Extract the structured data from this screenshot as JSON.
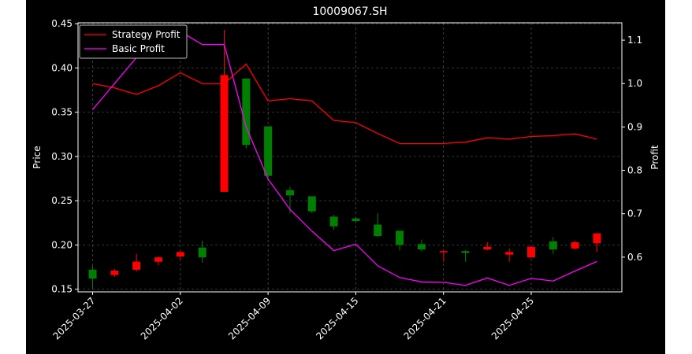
{
  "chart_data": {
    "type": "candlestick",
    "title": "10009067.SH",
    "ylabel": "Price",
    "y2label": "Profit",
    "ylim": [
      0.147,
      0.451
    ],
    "y2lim": [
      0.52,
      1.14
    ],
    "yticks": [
      0.15,
      0.2,
      0.25,
      0.3,
      0.35,
      0.4,
      0.45
    ],
    "ytick_labels": [
      "0.15",
      "0.20",
      "0.25",
      "0.30",
      "0.35",
      "0.40",
      "0.45"
    ],
    "y2ticks": [
      0.6,
      0.7,
      0.8,
      0.9,
      1.0,
      1.1
    ],
    "y2tick_labels": [
      "0.6",
      "0.7",
      "0.8",
      "0.9",
      "1.0",
      "1.1"
    ],
    "xlim": [
      -1,
      34
    ],
    "xticks": [
      0,
      6,
      12,
      18,
      24,
      30
    ],
    "xtick_labels": [
      "2025-03-27",
      "2025-04-02",
      "2025-04-09",
      "2025-04-15",
      "2025-04-21",
      "2025-04-25"
    ],
    "grid": true,
    "legend_position": "top-left",
    "colors": {
      "up": "#ff0000",
      "down": "#008000",
      "strategy": "#ff0000",
      "basic": "#ff00ff",
      "background": "#000000",
      "foreground": "#ffffff"
    },
    "candles": [
      {
        "x": 0,
        "open": 0.172,
        "high": 0.176,
        "low": 0.151,
        "close": 0.162
      },
      {
        "x": 1.5,
        "open": 0.166,
        "high": 0.173,
        "low": 0.164,
        "close": 0.171
      },
      {
        "x": 3,
        "open": 0.172,
        "high": 0.19,
        "low": 0.17,
        "close": 0.181
      },
      {
        "x": 4.5,
        "open": 0.181,
        "high": 0.187,
        "low": 0.177,
        "close": 0.186
      },
      {
        "x": 6,
        "open": 0.187,
        "high": 0.193,
        "low": 0.183,
        "close": 0.192
      },
      {
        "x": 7.5,
        "open": 0.197,
        "high": 0.205,
        "low": 0.18,
        "close": 0.186
      },
      {
        "x": 9,
        "open": 0.26,
        "high": 0.443,
        "low": 0.26,
        "close": 0.392
      },
      {
        "x": 10.5,
        "open": 0.388,
        "high": 0.388,
        "low": 0.309,
        "close": 0.313
      },
      {
        "x": 12,
        "open": 0.334,
        "high": 0.334,
        "low": 0.272,
        "close": 0.278
      },
      {
        "x": 13.5,
        "open": 0.262,
        "high": 0.266,
        "low": 0.236,
        "close": 0.256
      },
      {
        "x": 15,
        "open": 0.255,
        "high": 0.255,
        "low": 0.236,
        "close": 0.238
      },
      {
        "x": 16.5,
        "open": 0.232,
        "high": 0.234,
        "low": 0.217,
        "close": 0.221
      },
      {
        "x": 18,
        "open": 0.23,
        "high": 0.231,
        "low": 0.226,
        "close": 0.227
      },
      {
        "x": 19.5,
        "open": 0.223,
        "high": 0.236,
        "low": 0.209,
        "close": 0.21
      },
      {
        "x": 21,
        "open": 0.216,
        "high": 0.216,
        "low": 0.194,
        "close": 0.2
      },
      {
        "x": 22.5,
        "open": 0.201,
        "high": 0.206,
        "low": 0.193,
        "close": 0.195
      },
      {
        "x": 24,
        "open": 0.193,
        "high": 0.194,
        "low": 0.181,
        "close": 0.193
      },
      {
        "x": 25.5,
        "open": 0.193,
        "high": 0.194,
        "low": 0.181,
        "close": 0.191
      },
      {
        "x": 27,
        "open": 0.195,
        "high": 0.203,
        "low": 0.194,
        "close": 0.198
      },
      {
        "x": 28.5,
        "open": 0.189,
        "high": 0.196,
        "low": 0.181,
        "close": 0.192
      },
      {
        "x": 30,
        "open": 0.186,
        "high": 0.198,
        "low": 0.185,
        "close": 0.198
      },
      {
        "x": 31.5,
        "open": 0.204,
        "high": 0.209,
        "low": 0.19,
        "close": 0.195
      },
      {
        "x": 33,
        "open": 0.196,
        "high": 0.205,
        "low": 0.195,
        "close": 0.203
      },
      {
        "x": 34.5,
        "open": 0.202,
        "high": 0.213,
        "low": 0.192,
        "close": 0.213
      }
    ],
    "series": [
      {
        "name": "Strategy Profit",
        "x": [
          0,
          1.5,
          3,
          4.5,
          6,
          7.5,
          9,
          10.5,
          12,
          13.5,
          15,
          16.5,
          18,
          19.5,
          21,
          22.5,
          24,
          25.5,
          27,
          28.5,
          30,
          31.5,
          33,
          34.5
        ],
        "values": [
          1.0,
          0.99,
          0.975,
          0.995,
          1.025,
          1.0,
          1.0,
          1.045,
          0.96,
          0.965,
          0.96,
          0.915,
          0.91,
          0.885,
          0.862,
          0.862,
          0.862,
          0.865,
          0.875,
          0.872,
          0.878,
          0.88,
          0.884,
          0.872
        ]
      },
      {
        "name": "Basic Profit",
        "x": [
          0,
          1.5,
          3,
          4.5,
          6,
          7.5,
          9,
          10.5,
          12,
          13.5,
          15,
          16.5,
          18,
          19.5,
          21,
          22.5,
          24,
          25.5,
          27,
          28.5,
          30,
          31.5,
          33,
          34.5
        ],
        "values": [
          0.94,
          1.0,
          1.06,
          1.09,
          1.12,
          1.09,
          1.09,
          0.9,
          0.78,
          0.71,
          0.66,
          0.615,
          0.63,
          0.58,
          0.553,
          0.543,
          0.542,
          0.535,
          0.552,
          0.535,
          0.551,
          0.545,
          0.568,
          0.59
        ]
      }
    ]
  }
}
